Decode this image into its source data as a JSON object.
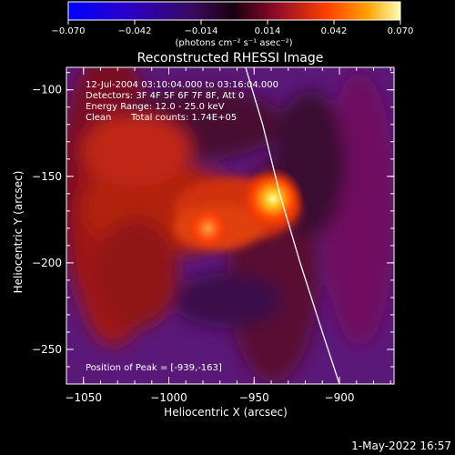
{
  "colorbar": {
    "ticks": [
      {
        "value": -0.07,
        "label": "−0.070"
      },
      {
        "value": -0.042,
        "label": "−0.042"
      },
      {
        "value": -0.014,
        "label": "−0.014"
      },
      {
        "value": 0.014,
        "label": "0.014"
      },
      {
        "value": 0.042,
        "label": "0.042"
      },
      {
        "value": 0.07,
        "label": "0.070"
      }
    ],
    "range": [
      -0.07,
      0.07
    ],
    "units_label": "(photons cm⁻² s⁻¹ asec⁻²)"
  },
  "chart_data": {
    "type": "heatmap",
    "title": "Reconstructed RHESSI Image",
    "xlabel": "Heliocentric X (arcsec)",
    "ylabel": "Heliocentric Y (arcsec)",
    "xlim": [
      -1060,
      -868
    ],
    "ylim": [
      -270,
      -87
    ],
    "x_ticks": [
      {
        "value": -1050,
        "label": "−1050"
      },
      {
        "value": -1000,
        "label": "−1000"
      },
      {
        "value": -950,
        "label": "−950"
      },
      {
        "value": -900,
        "label": "−900"
      }
    ],
    "y_ticks": [
      {
        "value": -100,
        "label": "−100"
      },
      {
        "value": -150,
        "label": "−150"
      },
      {
        "value": -200,
        "label": "−200"
      },
      {
        "value": -250,
        "label": "−250"
      }
    ],
    "sources": [
      {
        "x": -939,
        "y": -163,
        "peak": 0.07
      },
      {
        "x": -977,
        "y": -180,
        "peak": 0.05
      }
    ],
    "limb_curve": [
      [
        -955,
        -87
      ],
      [
        -945,
        -120
      ],
      [
        -935,
        -160
      ],
      [
        -923,
        -200
      ],
      [
        -910,
        -240
      ],
      [
        -900,
        -270
      ]
    ],
    "annotations": {
      "time_range": "12-Jul-2004 03:10:04.000 to 03:16:04.000",
      "detectors": "Detectors: 3F 4F 5F 6F 7F 8F, Att 0",
      "energy_range": "Energy Range: 12.0 - 25.0 keV",
      "clean_label": "Clean",
      "total_counts": "Total counts: 1.74E+05",
      "peak_position": "Position of Peak = [-939,-163]"
    }
  },
  "footer": {
    "date": "1-May-2022 16:57"
  }
}
